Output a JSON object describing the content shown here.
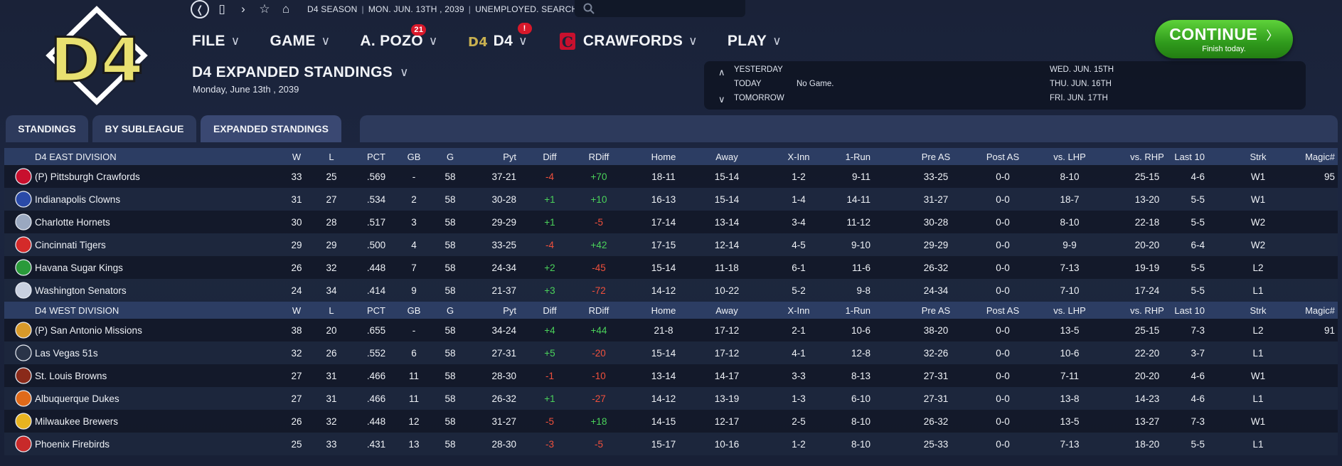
{
  "header": {
    "season": "D4 SEASON",
    "date": "MON. JUN. 13TH , 2039",
    "status": "UNEMPLOYED. SEARCH JOBS...",
    "logo_text": "D4"
  },
  "menu": [
    {
      "label": "FILE",
      "badge": ""
    },
    {
      "label": "GAME",
      "badge": ""
    },
    {
      "label": "A. POZO",
      "badge": "21"
    },
    {
      "label": "D4",
      "badge": "!"
    },
    {
      "label": "CRAWFORDS",
      "badge": ""
    },
    {
      "label": "PLAY",
      "badge": ""
    }
  ],
  "page": {
    "title": "D4 EXPANDED STANDINGS",
    "date": "Monday, June 13th , 2039"
  },
  "schedule": {
    "yesterday_label": "YESTERDAY",
    "today_label": "TODAY",
    "today_value": "No Game.",
    "tomorrow_label": "TOMORROW",
    "upcoming": [
      "WED. JUN. 15TH",
      "THU. JUN. 16TH",
      "FRI. JUN. 17TH"
    ]
  },
  "continue_button": {
    "label": "CONTINUE",
    "sub": "Finish today."
  },
  "tabs": [
    "STANDINGS",
    "BY SUBLEAGUE",
    "EXPANDED STANDINGS"
  ],
  "columns": [
    "W",
    "L",
    "PCT",
    "GB",
    "G",
    "Pyt",
    "Diff",
    "RDiff",
    "Home",
    "Away",
    "X-Inn",
    "1-Run",
    "Pre AS",
    "Post AS",
    "vs. LHP",
    "vs. RHP",
    "Last 10",
    "Strk",
    "Magic#"
  ],
  "divisions": [
    {
      "name": "D4 EAST DIVISION",
      "teams": [
        {
          "name": "(P) Pittsburgh Crawfords",
          "logo": "crawfords-logo",
          "color": "#c8102e",
          "values": [
            "33",
            "25",
            ".569",
            "-",
            "58",
            "37-21",
            "-4",
            "+70",
            "18-11",
            "15-14",
            "1-2",
            "9-11",
            "33-25",
            "0-0",
            "8-10",
            "25-15",
            "4-6",
            "W1",
            "95"
          ]
        },
        {
          "name": "Indianapolis Clowns",
          "logo": "clowns-logo",
          "color": "#2a4aa8",
          "values": [
            "31",
            "27",
            ".534",
            "2",
            "58",
            "30-28",
            "+1",
            "+10",
            "16-13",
            "15-14",
            "1-4",
            "14-11",
            "31-27",
            "0-0",
            "18-7",
            "13-20",
            "5-5",
            "W1",
            ""
          ]
        },
        {
          "name": "Charlotte Hornets",
          "logo": "hornets-logo",
          "color": "#9aa8c0",
          "values": [
            "30",
            "28",
            ".517",
            "3",
            "58",
            "29-29",
            "+1",
            "-5",
            "17-14",
            "13-14",
            "3-4",
            "11-12",
            "30-28",
            "0-0",
            "8-10",
            "22-18",
            "5-5",
            "W2",
            ""
          ]
        },
        {
          "name": "Cincinnati Tigers",
          "logo": "tigers-logo",
          "color": "#d42a2a",
          "values": [
            "29",
            "29",
            ".500",
            "4",
            "58",
            "33-25",
            "-4",
            "+42",
            "17-15",
            "12-14",
            "4-5",
            "9-10",
            "29-29",
            "0-0",
            "9-9",
            "20-20",
            "6-4",
            "W2",
            ""
          ]
        },
        {
          "name": "Havana Sugar Kings",
          "logo": "sugar-kings-logo",
          "color": "#2a9a3a",
          "values": [
            "26",
            "32",
            ".448",
            "7",
            "58",
            "24-34",
            "+2",
            "-45",
            "15-14",
            "11-18",
            "6-1",
            "11-6",
            "26-32",
            "0-0",
            "7-13",
            "19-19",
            "5-5",
            "L2",
            ""
          ]
        },
        {
          "name": "Washington Senators",
          "logo": "senators-logo",
          "color": "#c8d0e0",
          "values": [
            "24",
            "34",
            ".414",
            "9",
            "58",
            "21-37",
            "+3",
            "-72",
            "14-12",
            "10-22",
            "5-2",
            "9-8",
            "24-34",
            "0-0",
            "7-10",
            "17-24",
            "5-5",
            "L1",
            ""
          ]
        }
      ]
    },
    {
      "name": "D4 WEST DIVISION",
      "teams": [
        {
          "name": "(P) San Antonio Missions",
          "logo": "missions-logo",
          "color": "#d89a2a",
          "values": [
            "38",
            "20",
            ".655",
            "-",
            "58",
            "34-24",
            "+4",
            "+44",
            "21-8",
            "17-12",
            "2-1",
            "10-6",
            "38-20",
            "0-0",
            "13-5",
            "25-15",
            "7-3",
            "L2",
            "91"
          ]
        },
        {
          "name": "Las Vegas 51s",
          "logo": "51s-logo",
          "color": "#2a3448",
          "values": [
            "32",
            "26",
            ".552",
            "6",
            "58",
            "27-31",
            "+5",
            "-20",
            "15-14",
            "17-12",
            "4-1",
            "12-8",
            "32-26",
            "0-0",
            "10-6",
            "22-20",
            "3-7",
            "L1",
            ""
          ]
        },
        {
          "name": "St. Louis Browns",
          "logo": "browns-logo",
          "color": "#8a2a1a",
          "values": [
            "27",
            "31",
            ".466",
            "11",
            "58",
            "28-30",
            "-1",
            "-10",
            "13-14",
            "14-17",
            "3-3",
            "8-13",
            "27-31",
            "0-0",
            "7-11",
            "20-20",
            "4-6",
            "W1",
            ""
          ]
        },
        {
          "name": "Albuquerque Dukes",
          "logo": "dukes-logo",
          "color": "#e06a1a",
          "values": [
            "27",
            "31",
            ".466",
            "11",
            "58",
            "26-32",
            "+1",
            "-27",
            "14-12",
            "13-19",
            "1-3",
            "6-10",
            "27-31",
            "0-0",
            "13-8",
            "14-23",
            "4-6",
            "L1",
            ""
          ]
        },
        {
          "name": "Milwaukee Brewers",
          "logo": "brewers-logo",
          "color": "#e8b420",
          "values": [
            "26",
            "32",
            ".448",
            "12",
            "58",
            "31-27",
            "-5",
            "+18",
            "14-15",
            "12-17",
            "2-5",
            "8-10",
            "26-32",
            "0-0",
            "13-5",
            "13-27",
            "7-3",
            "W1",
            ""
          ]
        },
        {
          "name": "Phoenix Firebirds",
          "logo": "firebirds-logo",
          "color": "#c82a2a",
          "values": [
            "25",
            "33",
            ".431",
            "13",
            "58",
            "28-30",
            "-3",
            "-5",
            "15-17",
            "10-16",
            "1-2",
            "8-10",
            "25-33",
            "0-0",
            "7-13",
            "18-20",
            "5-5",
            "L1",
            ""
          ]
        }
      ]
    }
  ]
}
